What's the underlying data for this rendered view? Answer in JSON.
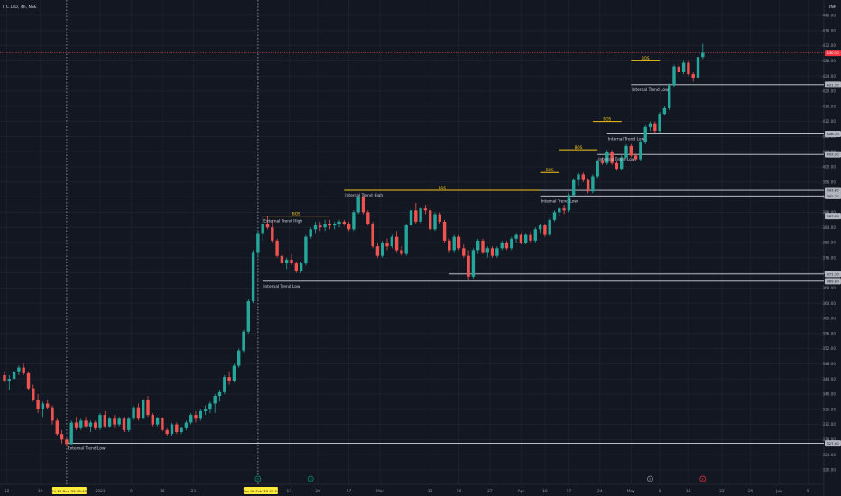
{
  "header": {
    "symbol_label": "ITC LTD, 4h, NSE",
    "currency": "INR"
  },
  "chart_data": {
    "type": "candlestick",
    "ylim": [
      318,
      442
    ],
    "yticks": [
      320,
      324,
      328,
      332,
      336,
      340,
      344,
      348,
      352,
      356,
      360,
      364,
      368,
      372,
      376,
      380,
      384,
      388,
      392,
      396,
      400,
      404,
      408,
      412,
      416,
      420,
      424,
      428,
      432,
      436,
      440
    ],
    "xticks": [
      {
        "label": "12",
        "i": 0.5
      },
      {
        "label": "19",
        "i": 7.5
      },
      {
        "label": "26",
        "i": 13.5
      },
      {
        "label": "2023",
        "i": 20
      },
      {
        "label": "9",
        "i": 26.5
      },
      {
        "label": "16",
        "i": 33
      },
      {
        "label": "23",
        "i": 39.5
      },
      {
        "label": "6",
        "i": 53
      },
      {
        "label": "13",
        "i": 59.5
      },
      {
        "label": "20",
        "i": 65.5
      },
      {
        "label": "27",
        "i": 72
      },
      {
        "label": "Mar",
        "i": 78.5
      },
      {
        "label": "13",
        "i": 89
      },
      {
        "label": "20",
        "i": 95
      },
      {
        "label": "27",
        "i": 101.5
      },
      {
        "label": "Apr",
        "i": 108
      },
      {
        "label": "10",
        "i": 113
      },
      {
        "label": "17",
        "i": 118
      },
      {
        "label": "24",
        "i": 124.5
      },
      {
        "label": "May",
        "i": 131
      },
      {
        "label": "8",
        "i": 137
      },
      {
        "label": "15",
        "i": 143
      },
      {
        "label": "22",
        "i": 150
      },
      {
        "label": "29",
        "i": 156
      },
      {
        "label": "Jun",
        "i": 162
      },
      {
        "label": "5",
        "i": 168
      }
    ],
    "crosshair_labels": [
      {
        "label": "Fri 23 Dec '22  09:15",
        "i": 13
      },
      {
        "label": "Mon 06 Feb '23  09:15",
        "i": 53
      }
    ],
    "last_price": {
      "value": 430.1,
      "label": "430.10"
    },
    "candles": [
      [
        345,
        346,
        343,
        343.5
      ],
      [
        343.5,
        345,
        341,
        344
      ],
      [
        344,
        346.5,
        343,
        346
      ],
      [
        346,
        347.5,
        345,
        347
      ],
      [
        347,
        348,
        345,
        345.5
      ],
      [
        345.5,
        346,
        341,
        341.5
      ],
      [
        341.5,
        342.5,
        338,
        338.5
      ],
      [
        338.5,
        340,
        335,
        336
      ],
      [
        336,
        338,
        334,
        337.5
      ],
      [
        337.5,
        338.5,
        336,
        336.5
      ],
      [
        336.5,
        337,
        332,
        333
      ],
      [
        333,
        333.5,
        329,
        329.5
      ],
      [
        329.5,
        330.5,
        327,
        328
      ],
      [
        328,
        328.5,
        326,
        326.8
      ],
      [
        326.8,
        333,
        326.5,
        332.5
      ],
      [
        332.5,
        334,
        330.5,
        331
      ],
      [
        331,
        333.5,
        330.5,
        333
      ],
      [
        333,
        334,
        331,
        331.5
      ],
      [
        331.5,
        333,
        330,
        332.5
      ],
      [
        332.5,
        333,
        330.5,
        331
      ],
      [
        331,
        335,
        330.5,
        334.5
      ],
      [
        334.5,
        335.5,
        331,
        331.5
      ],
      [
        331.5,
        334,
        331,
        333.5
      ],
      [
        333.5,
        334.5,
        331,
        332
      ],
      [
        332,
        334,
        331.5,
        333.5
      ],
      [
        333.5,
        334,
        330,
        330.5
      ],
      [
        330.5,
        334,
        330,
        333.5
      ],
      [
        333.5,
        337,
        333,
        336.5
      ],
      [
        336.5,
        337.5,
        333,
        333.5
      ],
      [
        333.5,
        339,
        333,
        338.5
      ],
      [
        338.5,
        339.5,
        334,
        334.5
      ],
      [
        334.5,
        335,
        331.5,
        332
      ],
      [
        332,
        334,
        331.5,
        333.8
      ],
      [
        333.8,
        334,
        330,
        330.5
      ],
      [
        330.5,
        331,
        329,
        329.5
      ],
      [
        329.5,
        332.5,
        329,
        332
      ],
      [
        332,
        332.5,
        329.5,
        330
      ],
      [
        330,
        331.5,
        329.5,
        331
      ],
      [
        331,
        333,
        330.5,
        332.5
      ],
      [
        332.5,
        335,
        332,
        334.5
      ],
      [
        334.5,
        335.5,
        332.5,
        333.5
      ],
      [
        333.5,
        336,
        333,
        335.5
      ],
      [
        335.5,
        337,
        334.5,
        336
      ],
      [
        336,
        338,
        335,
        337.5
      ],
      [
        337.5,
        340,
        335,
        339.5
      ],
      [
        339.5,
        341,
        338,
        340.5
      ],
      [
        340.5,
        345,
        340,
        344.5
      ],
      [
        344.5,
        346,
        342.5,
        343.5
      ],
      [
        343.5,
        348,
        343,
        347.5
      ],
      [
        347.5,
        352,
        347,
        351.5
      ],
      [
        351.5,
        357,
        351,
        356.5
      ],
      [
        356.5,
        365,
        356,
        364.5
      ],
      [
        364.5,
        378,
        364,
        377.5
      ],
      [
        377.5,
        383,
        376,
        382.5
      ],
      [
        382.5,
        387,
        380.5,
        385
      ],
      [
        385,
        387,
        383.5,
        384
      ],
      [
        384,
        386,
        380,
        380.5
      ],
      [
        380.5,
        381,
        376,
        376.5
      ],
      [
        376.5,
        378,
        374,
        374.5
      ],
      [
        374.5,
        376,
        373,
        375.5
      ],
      [
        375.5,
        377,
        374,
        374.5
      ],
      [
        374.5,
        375,
        372,
        372.5
      ],
      [
        372.5,
        375,
        372,
        374.5
      ],
      [
        374.5,
        382,
        374,
        381.5
      ],
      [
        381.5,
        384,
        381,
        383.5
      ],
      [
        383.5,
        385.5,
        382.5,
        384.5
      ],
      [
        384.5,
        385.5,
        383,
        384
      ],
      [
        384,
        386,
        383,
        385
      ],
      [
        385,
        386,
        383.5,
        384.5
      ],
      [
        384.5,
        385.5,
        383.5,
        385
      ],
      [
        385,
        386,
        384,
        385.5
      ],
      [
        385.5,
        386,
        384.5,
        385
      ],
      [
        385,
        385.5,
        383,
        383.5
      ],
      [
        383.5,
        388.5,
        383,
        388
      ],
      [
        388,
        392.5,
        387.5,
        392
      ],
      [
        392,
        392.5,
        387.5,
        388
      ],
      [
        388,
        388.5,
        384.5,
        385
      ],
      [
        385,
        385.5,
        378.5,
        379
      ],
      [
        379,
        380,
        376,
        376.5
      ],
      [
        376.5,
        380.5,
        376,
        380
      ],
      [
        380,
        381,
        378,
        379
      ],
      [
        379,
        382,
        378.5,
        381.5
      ],
      [
        381.5,
        383,
        377.5,
        378
      ],
      [
        378,
        379,
        376.5,
        377
      ],
      [
        377,
        385,
        376.5,
        384.5
      ],
      [
        384.5,
        389,
        384,
        388.5
      ],
      [
        388.5,
        390.5,
        385,
        385.5
      ],
      [
        385.5,
        389.5,
        385,
        389
      ],
      [
        389,
        390,
        387.5,
        388.5
      ],
      [
        388.5,
        389,
        383,
        383.5
      ],
      [
        383.5,
        388,
        383,
        387.5
      ],
      [
        387.5,
        388,
        385,
        385.5
      ],
      [
        385.5,
        386,
        380,
        380.5
      ],
      [
        380.5,
        381,
        377.5,
        378
      ],
      [
        378,
        382,
        377.5,
        381.5
      ],
      [
        381.5,
        382,
        378,
        378.5
      ],
      [
        378.5,
        379.5,
        376,
        376.5
      ],
      [
        376.5,
        378,
        370,
        371
      ],
      [
        371,
        378.5,
        370.5,
        378
      ],
      [
        378,
        381,
        377,
        380.5
      ],
      [
        380.5,
        381,
        377,
        377.5
      ],
      [
        377.5,
        379,
        376,
        378.5
      ],
      [
        378.5,
        379,
        376,
        376.5
      ],
      [
        376.5,
        379,
        376,
        378.5
      ],
      [
        378.5,
        380.5,
        378,
        380
      ],
      [
        380,
        380.5,
        378,
        378.5
      ],
      [
        378.5,
        381.5,
        378,
        381
      ],
      [
        381,
        382.5,
        380,
        382
      ],
      [
        382,
        382.5,
        379.5,
        380
      ],
      [
        380,
        382.5,
        379.5,
        382
      ],
      [
        382,
        383,
        380,
        380.5
      ],
      [
        380.5,
        384,
        380,
        383.5
      ],
      [
        383.5,
        385,
        382.5,
        384.5
      ],
      [
        384.5,
        385,
        381.5,
        382
      ],
      [
        382,
        386.5,
        381.5,
        386
      ],
      [
        386,
        388.5,
        385.5,
        388
      ],
      [
        388,
        389.5,
        387,
        389
      ],
      [
        389,
        390,
        387.5,
        388.5
      ],
      [
        388.5,
        393,
        388,
        392.5
      ],
      [
        392.5,
        397,
        392,
        396.5
      ],
      [
        396.5,
        398.5,
        395,
        398
      ],
      [
        398,
        398.5,
        396,
        396.5
      ],
      [
        396.5,
        397,
        393,
        393.5
      ],
      [
        393.5,
        398,
        393,
        397.5
      ],
      [
        397.5,
        402,
        397,
        401.5
      ],
      [
        401.5,
        402.5,
        400.5,
        401
      ],
      [
        401,
        404.5,
        400.5,
        404
      ],
      [
        404,
        404.5,
        400.5,
        401
      ],
      [
        401,
        401.5,
        399,
        399.5
      ],
      [
        399.5,
        403,
        399,
        402.5
      ],
      [
        402.5,
        406,
        402,
        405.5
      ],
      [
        405.5,
        406,
        402.5,
        403
      ],
      [
        403,
        403.5,
        401.5,
        402
      ],
      [
        402,
        407,
        401.5,
        406.5
      ],
      [
        406.5,
        411,
        406,
        410.5
      ],
      [
        410.5,
        412,
        409.5,
        411.5
      ],
      [
        411.5,
        412,
        409,
        409.5
      ],
      [
        409.5,
        414.5,
        409,
        414
      ],
      [
        414,
        416,
        413.5,
        415.5
      ],
      [
        415.5,
        422,
        415,
        421.5
      ],
      [
        421.5,
        427,
        421,
        426.5
      ],
      [
        426.5,
        427.5,
        424.5,
        425
      ],
      [
        425,
        428,
        424.5,
        427.5
      ],
      [
        427.5,
        428,
        424,
        424.5
      ],
      [
        424.5,
        425,
        422.5,
        423.5
      ],
      [
        423.5,
        430.5,
        423,
        429
      ],
      [
        429,
        432.5,
        428.5,
        430.1
      ]
    ],
    "lines": [
      {
        "type": "structure",
        "label": "External Trend Low",
        "value": 327,
        "from": 13,
        "color": "#d1d4dc",
        "pricebox": "327.00"
      },
      {
        "type": "structure",
        "label": "Internal Trend Low",
        "value": 369.8,
        "from": 54,
        "color": "#d1d4dc",
        "pricebox": "369.80"
      },
      {
        "type": "structure",
        "label": "",
        "value": 371.7,
        "from": 93,
        "color": "#d1d4dc",
        "pricebox": "371.70"
      },
      {
        "type": "structure",
        "label": "External Trend High",
        "value": 387,
        "from": 54,
        "color": "#d1d4dc",
        "pricebox": "387.00"
      },
      {
        "type": "structure",
        "label": "Internal Trend Low",
        "value": 392.3,
        "from": 112,
        "color": "#d1d4dc",
        "pricebox": "392.30"
      },
      {
        "type": "structure",
        "label": "Internal Trend High",
        "value": 393.8,
        "from": 71,
        "color": "#d1d4dc",
        "pricebox": "393.80"
      },
      {
        "type": "structure",
        "label": "Internal Trend Low",
        "value": 403.3,
        "from": 124,
        "color": "#d1d4dc",
        "pricebox": "403.30"
      },
      {
        "type": "structure",
        "label": "Internal Trend Low",
        "value": 408.7,
        "from": 126,
        "color": "#d1d4dc",
        "pricebox": "408.70"
      },
      {
        "type": "structure",
        "label": "Internal Trend Low",
        "value": 421.7,
        "from": 131,
        "color": "#d1d4dc",
        "pricebox": "421.70"
      }
    ],
    "bos": [
      {
        "label": "BOS",
        "value": 387,
        "from": 54,
        "to": 68
      },
      {
        "label": "BOS",
        "value": 393.8,
        "from": 71,
        "to": 112
      },
      {
        "label": "BOS",
        "value": 398.5,
        "from": 112,
        "to": 116
      },
      {
        "label": "BOS",
        "value": 404.5,
        "from": 116,
        "to": 124
      },
      {
        "label": "BOS",
        "value": 412,
        "from": 123,
        "to": 129
      },
      {
        "label": "BOS",
        "value": 428,
        "from": 131,
        "to": 137
      }
    ],
    "event_markers": [
      {
        "label": "D",
        "i": 53,
        "color": "#089981"
      },
      {
        "label": "D",
        "i": 64,
        "color": "#089981"
      },
      {
        "label": "E",
        "i": 135,
        "color": "#9598a1"
      },
      {
        "label": "E",
        "i": 146,
        "color": "#f23645"
      }
    ]
  }
}
